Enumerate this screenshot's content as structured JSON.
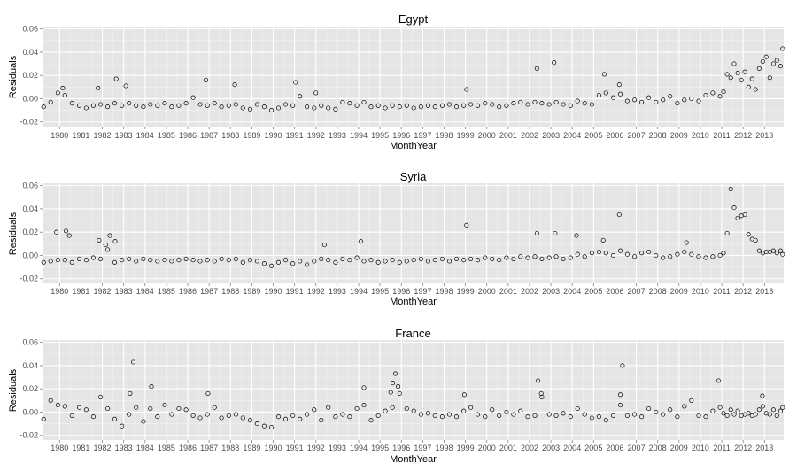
{
  "chart_data": [
    {
      "type": "scatter",
      "title": "Egypt",
      "xlabel": "MonthYear",
      "ylabel": "Residuals",
      "xlim": [
        1979.2,
        2013.9
      ],
      "ylim": [
        -0.024,
        0.062
      ],
      "yticks": [
        -0.02,
        0.0,
        0.02,
        0.04,
        0.06
      ],
      "ytick_labels": [
        "-0.02",
        "0.00",
        "0.02",
        "0.04",
        "0.06"
      ],
      "xticks": [
        1980,
        1981,
        1982,
        1983,
        1984,
        1985,
        1986,
        1987,
        1988,
        1989,
        1990,
        1991,
        1992,
        1993,
        1994,
        1995,
        1996,
        1997,
        1998,
        1999,
        2000,
        2001,
        2002,
        2003,
        2004,
        2005,
        2006,
        2007,
        2008,
        2009,
        2010,
        2011,
        2012,
        2013
      ],
      "xtick_labels": [
        "1980",
        "1981",
        "1982",
        "1983",
        "1984",
        "1985",
        "1986",
        "1987",
        "1988",
        "1989",
        "1990",
        "1991",
        "1992",
        "1993",
        "1994",
        "1995",
        "1996",
        "1997",
        "1998",
        "1999",
        "2000",
        "2001",
        "2002",
        "2003",
        "2004",
        "2005",
        "2006",
        "2007",
        "2008",
        "2009",
        "2010",
        "2011",
        "2012",
        "2013"
      ],
      "grid": true,
      "x": [
        1979.25,
        1979.58,
        1979.92,
        1980.25,
        1980.58,
        1980.92,
        1981.25,
        1981.58,
        1981.92,
        1982.25,
        1982.58,
        1982.92,
        1983.25,
        1983.58,
        1983.92,
        1984.25,
        1984.58,
        1984.92,
        1985.25,
        1985.58,
        1985.92,
        1986.25,
        1986.58,
        1986.92,
        1987.25,
        1987.58,
        1987.92,
        1988.25,
        1988.58,
        1988.92,
        1989.25,
        1989.58,
        1989.92,
        1990.25,
        1990.58,
        1990.92,
        1991.25,
        1991.58,
        1991.92,
        1992.25,
        1992.58,
        1992.92,
        1993.25,
        1993.58,
        1993.92,
        1994.25,
        1994.58,
        1994.92,
        1995.25,
        1995.58,
        1995.92,
        1996.25,
        1996.58,
        1996.92,
        1997.25,
        1997.58,
        1997.92,
        1998.25,
        1998.58,
        1998.92,
        1999.25,
        1999.58,
        1999.92,
        2000.25,
        2000.58,
        2000.92,
        2001.25,
        2001.58,
        2001.92,
        2002.25,
        2002.58,
        2002.92,
        2003.25,
        2003.58,
        2003.92,
        2004.25,
        2004.58,
        2004.92,
        2005.25,
        2005.58,
        2005.92,
        2006.25,
        2006.58,
        2006.92,
        2007.25,
        2007.58,
        2007.92,
        2008.25,
        2008.58,
        2008.92,
        2009.25,
        2009.58,
        2009.92,
        2010.25,
        2010.58,
        2010.92,
        2011.08,
        2011.25,
        2011.42,
        2011.58,
        2011.75,
        2011.92,
        2012.08,
        2012.25,
        2012.42,
        2012.58,
        2012.75,
        2012.92,
        2013.08,
        2013.25,
        2013.42,
        2013.58,
        2013.75,
        2013.85,
        1980.15,
        1981.8,
        1982.65,
        1983.1,
        1986.85,
        1988.2,
        1991.05,
        1992.0,
        1999.05,
        2002.35,
        2003.15,
        2005.5,
        2006.2
      ],
      "y": [
        -0.007,
        -0.003,
        0.005,
        0.003,
        -0.004,
        -0.006,
        -0.008,
        -0.006,
        -0.005,
        -0.007,
        -0.004,
        -0.006,
        -0.004,
        -0.006,
        -0.007,
        -0.005,
        -0.006,
        -0.004,
        -0.007,
        -0.006,
        -0.004,
        0.001,
        -0.005,
        -0.006,
        -0.004,
        -0.007,
        -0.006,
        -0.005,
        -0.008,
        -0.009,
        -0.005,
        -0.007,
        -0.01,
        -0.008,
        -0.005,
        -0.006,
        0.002,
        -0.007,
        -0.008,
        -0.006,
        -0.008,
        -0.009,
        -0.003,
        -0.004,
        -0.006,
        -0.003,
        -0.007,
        -0.006,
        -0.008,
        -0.006,
        -0.007,
        -0.006,
        -0.008,
        -0.007,
        -0.006,
        -0.007,
        -0.006,
        -0.005,
        -0.007,
        -0.006,
        -0.005,
        -0.006,
        -0.004,
        -0.005,
        -0.007,
        -0.006,
        -0.004,
        -0.003,
        -0.005,
        -0.003,
        -0.004,
        -0.005,
        -0.003,
        -0.005,
        -0.006,
        -0.002,
        -0.004,
        -0.005,
        0.003,
        0.005,
        0.001,
        0.004,
        -0.002,
        -0.001,
        -0.003,
        0.001,
        -0.003,
        -0.001,
        0.002,
        -0.004,
        -0.001,
        0.0,
        -0.002,
        0.003,
        0.005,
        0.002,
        0.006,
        0.021,
        0.018,
        0.03,
        0.022,
        0.016,
        0.023,
        0.01,
        0.017,
        0.008,
        0.026,
        0.032,
        0.036,
        0.018,
        0.03,
        0.033,
        0.028,
        0.043,
        0.009,
        0.009,
        0.017,
        0.011,
        0.016,
        0.012,
        0.014,
        0.005,
        0.008,
        0.026,
        0.031,
        0.021,
        0.012
      ]
    },
    {
      "type": "scatter",
      "title": "Syria",
      "xlabel": "MonthYear",
      "ylabel": "Residuals",
      "xlim": [
        1979.2,
        2013.9
      ],
      "ylim": [
        -0.024,
        0.062
      ],
      "yticks": [
        -0.02,
        0.0,
        0.02,
        0.04,
        0.06
      ],
      "ytick_labels": [
        "-0.02",
        "0.00",
        "0.02",
        "0.04",
        "0.06"
      ],
      "xticks": [
        1980,
        1981,
        1982,
        1983,
        1984,
        1985,
        1986,
        1987,
        1988,
        1989,
        1990,
        1991,
        1992,
        1993,
        1994,
        1995,
        1996,
        1997,
        1998,
        1999,
        2000,
        2001,
        2002,
        2003,
        2004,
        2005,
        2006,
        2007,
        2008,
        2009,
        2010,
        2011,
        2012,
        2013
      ],
      "xtick_labels": [
        "1980",
        "1981",
        "1982",
        "1983",
        "1984",
        "1985",
        "1986",
        "1987",
        "1988",
        "1989",
        "1990",
        "1991",
        "1992",
        "1993",
        "1994",
        "1995",
        "1996",
        "1997",
        "1998",
        "1999",
        "2000",
        "2001",
        "2002",
        "2003",
        "2004",
        "2005",
        "2006",
        "2007",
        "2008",
        "2009",
        "2010",
        "2011",
        "2012",
        "2013"
      ],
      "grid": true,
      "x": [
        1979.25,
        1979.58,
        1979.92,
        1980.25,
        1980.58,
        1980.92,
        1981.25,
        1981.58,
        1981.92,
        1982.25,
        1982.58,
        1982.92,
        1983.25,
        1983.58,
        1983.92,
        1984.25,
        1984.58,
        1984.92,
        1985.25,
        1985.58,
        1985.92,
        1986.25,
        1986.58,
        1986.92,
        1987.25,
        1987.58,
        1987.92,
        1988.25,
        1988.58,
        1988.92,
        1989.25,
        1989.58,
        1989.92,
        1990.25,
        1990.58,
        1990.92,
        1991.25,
        1991.58,
        1991.92,
        1992.25,
        1992.58,
        1992.92,
        1993.25,
        1993.58,
        1993.92,
        1994.25,
        1994.58,
        1994.92,
        1995.25,
        1995.58,
        1995.92,
        1996.25,
        1996.58,
        1996.92,
        1997.25,
        1997.58,
        1997.92,
        1998.25,
        1998.58,
        1998.92,
        1999.25,
        1999.58,
        1999.92,
        2000.25,
        2000.58,
        2000.92,
        2001.25,
        2001.58,
        2001.92,
        2002.25,
        2002.58,
        2002.92,
        2003.25,
        2003.58,
        2003.92,
        2004.25,
        2004.58,
        2004.92,
        2005.25,
        2005.58,
        2005.92,
        2006.25,
        2006.58,
        2006.92,
        2007.25,
        2007.58,
        2007.92,
        2008.25,
        2008.58,
        2008.92,
        2009.25,
        2009.58,
        2009.92,
        2010.25,
        2010.58,
        2010.92,
        2011.08,
        2011.25,
        2011.42,
        2011.58,
        2011.75,
        2011.92,
        2012.08,
        2012.25,
        2012.42,
        2012.58,
        2012.75,
        2012.92,
        2013.08,
        2013.25,
        2013.42,
        2013.58,
        2013.75,
        2013.85,
        1979.85,
        1980.3,
        1980.45,
        1981.85,
        1982.15,
        1982.35,
        1982.6,
        1992.4,
        1994.1,
        1999.05,
        2002.35,
        2003.2,
        2004.2,
        2005.45,
        2006.2,
        2009.35
      ],
      "y": [
        -0.006,
        -0.005,
        -0.004,
        -0.004,
        -0.006,
        -0.003,
        -0.004,
        -0.002,
        -0.003,
        0.005,
        -0.006,
        -0.004,
        -0.003,
        -0.005,
        -0.003,
        -0.004,
        -0.005,
        -0.004,
        -0.005,
        -0.004,
        -0.003,
        -0.004,
        -0.005,
        -0.004,
        -0.005,
        -0.003,
        -0.004,
        -0.003,
        -0.006,
        -0.004,
        -0.005,
        -0.007,
        -0.009,
        -0.006,
        -0.004,
        -0.007,
        -0.005,
        -0.008,
        -0.005,
        -0.003,
        -0.004,
        -0.006,
        -0.003,
        -0.004,
        -0.002,
        -0.005,
        -0.004,
        -0.006,
        -0.005,
        -0.004,
        -0.006,
        -0.005,
        -0.004,
        -0.003,
        -0.005,
        -0.004,
        -0.003,
        -0.005,
        -0.003,
        -0.004,
        -0.003,
        -0.004,
        -0.002,
        -0.003,
        -0.004,
        -0.002,
        -0.003,
        -0.001,
        -0.002,
        -0.001,
        -0.003,
        -0.002,
        -0.001,
        -0.003,
        -0.002,
        0.001,
        -0.001,
        0.002,
        0.003,
        0.002,
        0.0,
        0.004,
        0.001,
        -0.001,
        0.002,
        0.003,
        0.0,
        -0.002,
        -0.001,
        0.001,
        0.003,
        0.001,
        -0.001,
        -0.002,
        -0.001,
        0.0,
        0.002,
        0.019,
        0.057,
        0.041,
        0.032,
        0.034,
        0.035,
        0.018,
        0.014,
        0.013,
        0.004,
        0.002,
        0.003,
        0.003,
        0.004,
        0.002,
        0.004,
        0.001,
        0.02,
        0.021,
        0.017,
        0.013,
        0.009,
        0.017,
        0.012,
        0.009,
        0.012,
        0.026,
        0.019,
        0.019,
        0.017,
        0.013,
        0.035,
        0.011
      ]
    },
    {
      "type": "scatter",
      "title": "France",
      "xlabel": "MonthYear",
      "ylabel": "Residuals",
      "xlim": [
        1979.2,
        2013.9
      ],
      "ylim": [
        -0.024,
        0.062
      ],
      "yticks": [
        -0.02,
        0.0,
        0.02,
        0.04,
        0.06
      ],
      "ytick_labels": [
        "-0.02",
        "0.00",
        "0.02",
        "0.04",
        "0.06"
      ],
      "xticks": [
        1980,
        1981,
        1982,
        1983,
        1984,
        1985,
        1986,
        1987,
        1988,
        1989,
        1990,
        1991,
        1992,
        1993,
        1994,
        1995,
        1996,
        1997,
        1998,
        1999,
        2000,
        2001,
        2002,
        2003,
        2004,
        2005,
        2006,
        2007,
        2008,
        2009,
        2010,
        2011,
        2012,
        2013
      ],
      "xtick_labels": [
        "1980",
        "1981",
        "1982",
        "1983",
        "1984",
        "1985",
        "1986",
        "1987",
        "1988",
        "1989",
        "1990",
        "1991",
        "1992",
        "1993",
        "1994",
        "1995",
        "1996",
        "1997",
        "1998",
        "1999",
        "2000",
        "2001",
        "2002",
        "2003",
        "2004",
        "2005",
        "2006",
        "2007",
        "2008",
        "2009",
        "2010",
        "2011",
        "2012",
        "2013"
      ],
      "grid": true,
      "x": [
        1979.25,
        1979.58,
        1979.92,
        1980.25,
        1980.58,
        1980.92,
        1981.25,
        1981.58,
        1981.92,
        1982.25,
        1982.58,
        1982.92,
        1983.25,
        1983.58,
        1983.92,
        1984.25,
        1984.58,
        1984.92,
        1985.25,
        1985.58,
        1985.92,
        1986.25,
        1986.58,
        1986.92,
        1987.25,
        1987.58,
        1987.92,
        1988.25,
        1988.58,
        1988.92,
        1989.25,
        1989.58,
        1989.92,
        1990.25,
        1990.58,
        1990.92,
        1991.25,
        1991.58,
        1991.92,
        1992.25,
        1992.58,
        1992.92,
        1993.25,
        1993.58,
        1993.92,
        1994.25,
        1994.58,
        1994.92,
        1995.25,
        1995.58,
        1995.92,
        1996.25,
        1996.58,
        1996.92,
        1997.25,
        1997.58,
        1997.92,
        1998.25,
        1998.58,
        1998.92,
        1999.25,
        1999.58,
        1999.92,
        2000.25,
        2000.58,
        2000.92,
        2001.25,
        2001.58,
        2001.92,
        2002.25,
        2002.58,
        2002.92,
        2003.25,
        2003.58,
        2003.92,
        2004.25,
        2004.58,
        2004.92,
        2005.25,
        2005.58,
        2005.92,
        2006.25,
        2006.58,
        2006.92,
        2007.25,
        2007.58,
        2007.92,
        2008.25,
        2008.58,
        2008.92,
        2009.25,
        2009.58,
        2009.92,
        2010.25,
        2010.58,
        2010.92,
        2011.08,
        2011.25,
        2011.42,
        2011.58,
        2011.75,
        2011.92,
        2012.08,
        2012.25,
        2012.42,
        2012.58,
        2012.75,
        2012.92,
        2013.08,
        2013.25,
        2013.42,
        2013.58,
        2013.75,
        2013.85,
        1983.45,
        1983.3,
        1984.3,
        1986.95,
        1994.25,
        1995.5,
        1995.6,
        1995.72,
        1995.85,
        1998.95,
        2002.4,
        2002.55,
        2006.35,
        2006.25,
        2010.85,
        2012.9
      ],
      "y": [
        -0.006,
        0.01,
        0.006,
        0.005,
        -0.003,
        0.004,
        0.002,
        -0.004,
        0.013,
        0.003,
        -0.006,
        -0.012,
        -0.002,
        0.004,
        -0.008,
        0.003,
        -0.004,
        0.006,
        -0.002,
        0.003,
        0.002,
        -0.003,
        -0.005,
        -0.002,
        0.004,
        -0.005,
        -0.003,
        -0.002,
        -0.005,
        -0.007,
        -0.01,
        -0.012,
        -0.013,
        -0.004,
        -0.006,
        -0.003,
        -0.006,
        -0.002,
        0.002,
        -0.007,
        0.004,
        -0.004,
        -0.002,
        -0.004,
        0.003,
        0.006,
        -0.007,
        -0.003,
        0.001,
        0.004,
        0.016,
        0.003,
        0.001,
        -0.002,
        -0.001,
        -0.003,
        -0.004,
        -0.002,
        -0.004,
        0.001,
        0.004,
        -0.002,
        -0.004,
        0.002,
        -0.003,
        0.0,
        -0.002,
        0.001,
        -0.004,
        -0.003,
        0.013,
        -0.002,
        -0.003,
        -0.001,
        -0.004,
        0.003,
        -0.002,
        -0.005,
        -0.004,
        -0.007,
        -0.003,
        0.006,
        -0.003,
        -0.002,
        -0.004,
        0.003,
        0.0,
        -0.002,
        0.002,
        -0.004,
        0.005,
        0.01,
        -0.003,
        -0.004,
        0.001,
        0.004,
        -0.001,
        -0.003,
        0.002,
        -0.002,
        0.001,
        -0.003,
        -0.002,
        -0.001,
        -0.003,
        -0.002,
        0.002,
        0.005,
        -0.001,
        -0.002,
        0.002,
        -0.003,
        0.001,
        0.004,
        0.043,
        0.016,
        0.022,
        0.016,
        0.021,
        0.017,
        0.025,
        0.033,
        0.022,
        0.015,
        0.027,
        0.016,
        0.04,
        0.015,
        0.027,
        0.014
      ]
    }
  ]
}
